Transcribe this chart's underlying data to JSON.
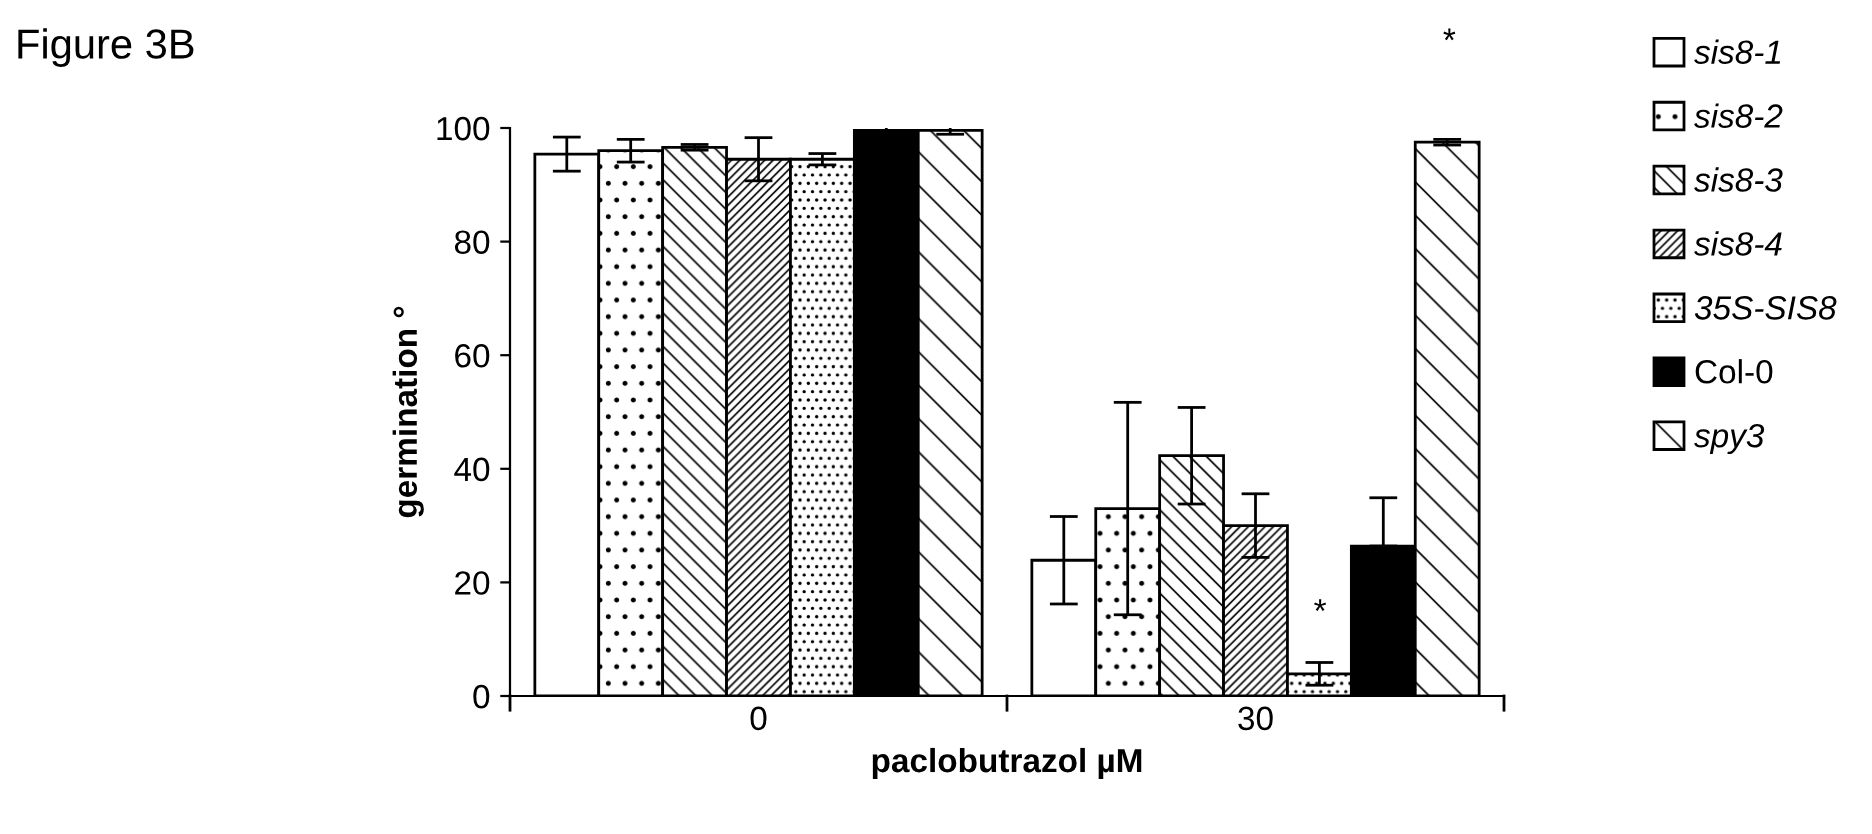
{
  "chart_data": {
    "type": "bar",
    "title": "Figure 3B",
    "xlabel": "paclobutrazol µM",
    "ylabel": "germination °",
    "categories": [
      "0",
      "30"
    ],
    "series": [
      {
        "name": "sis8-1",
        "color": "#ffffff",
        "values": [
          95.4,
          23.9
        ],
        "errors": [
          3,
          7.7
        ]
      },
      {
        "name": "sis8-2",
        "color": "#000000",
        "values": [
          96,
          33
        ],
        "errors": [
          2,
          18.7
        ]
      },
      {
        "name": "sis8-3",
        "color": "#000000",
        "values": [
          96.6,
          42.3
        ],
        "errors": [
          0.5,
          8.5
        ]
      },
      {
        "name": "sis8-4",
        "color": "#000000",
        "values": [
          94.5,
          30
        ],
        "errors": [
          3.8,
          5.6
        ]
      },
      {
        "name": "35S-SIS8",
        "color": "#000000",
        "values": [
          94.5,
          3.9
        ],
        "errors": [
          1,
          2
        ]
      },
      {
        "name": "Col-0",
        "color": "#000000",
        "values": [
          99.6,
          26.4
        ],
        "errors": [
          0.7,
          [
            26.4,
            34.9
          ]
        ]
      },
      {
        "name": "spy3",
        "color": "#000000",
        "values": [
          99.6,
          97.5
        ],
        "errors": [
          0.7,
          0.5
        ]
      }
    ],
    "ylim": [
      0,
      100
    ],
    "yticks": [
      0,
      20,
      40,
      60,
      80,
      100
    ],
    "grid": false,
    "legend": "right",
    "annotations": [
      "*",
      "*"
    ]
  }
}
